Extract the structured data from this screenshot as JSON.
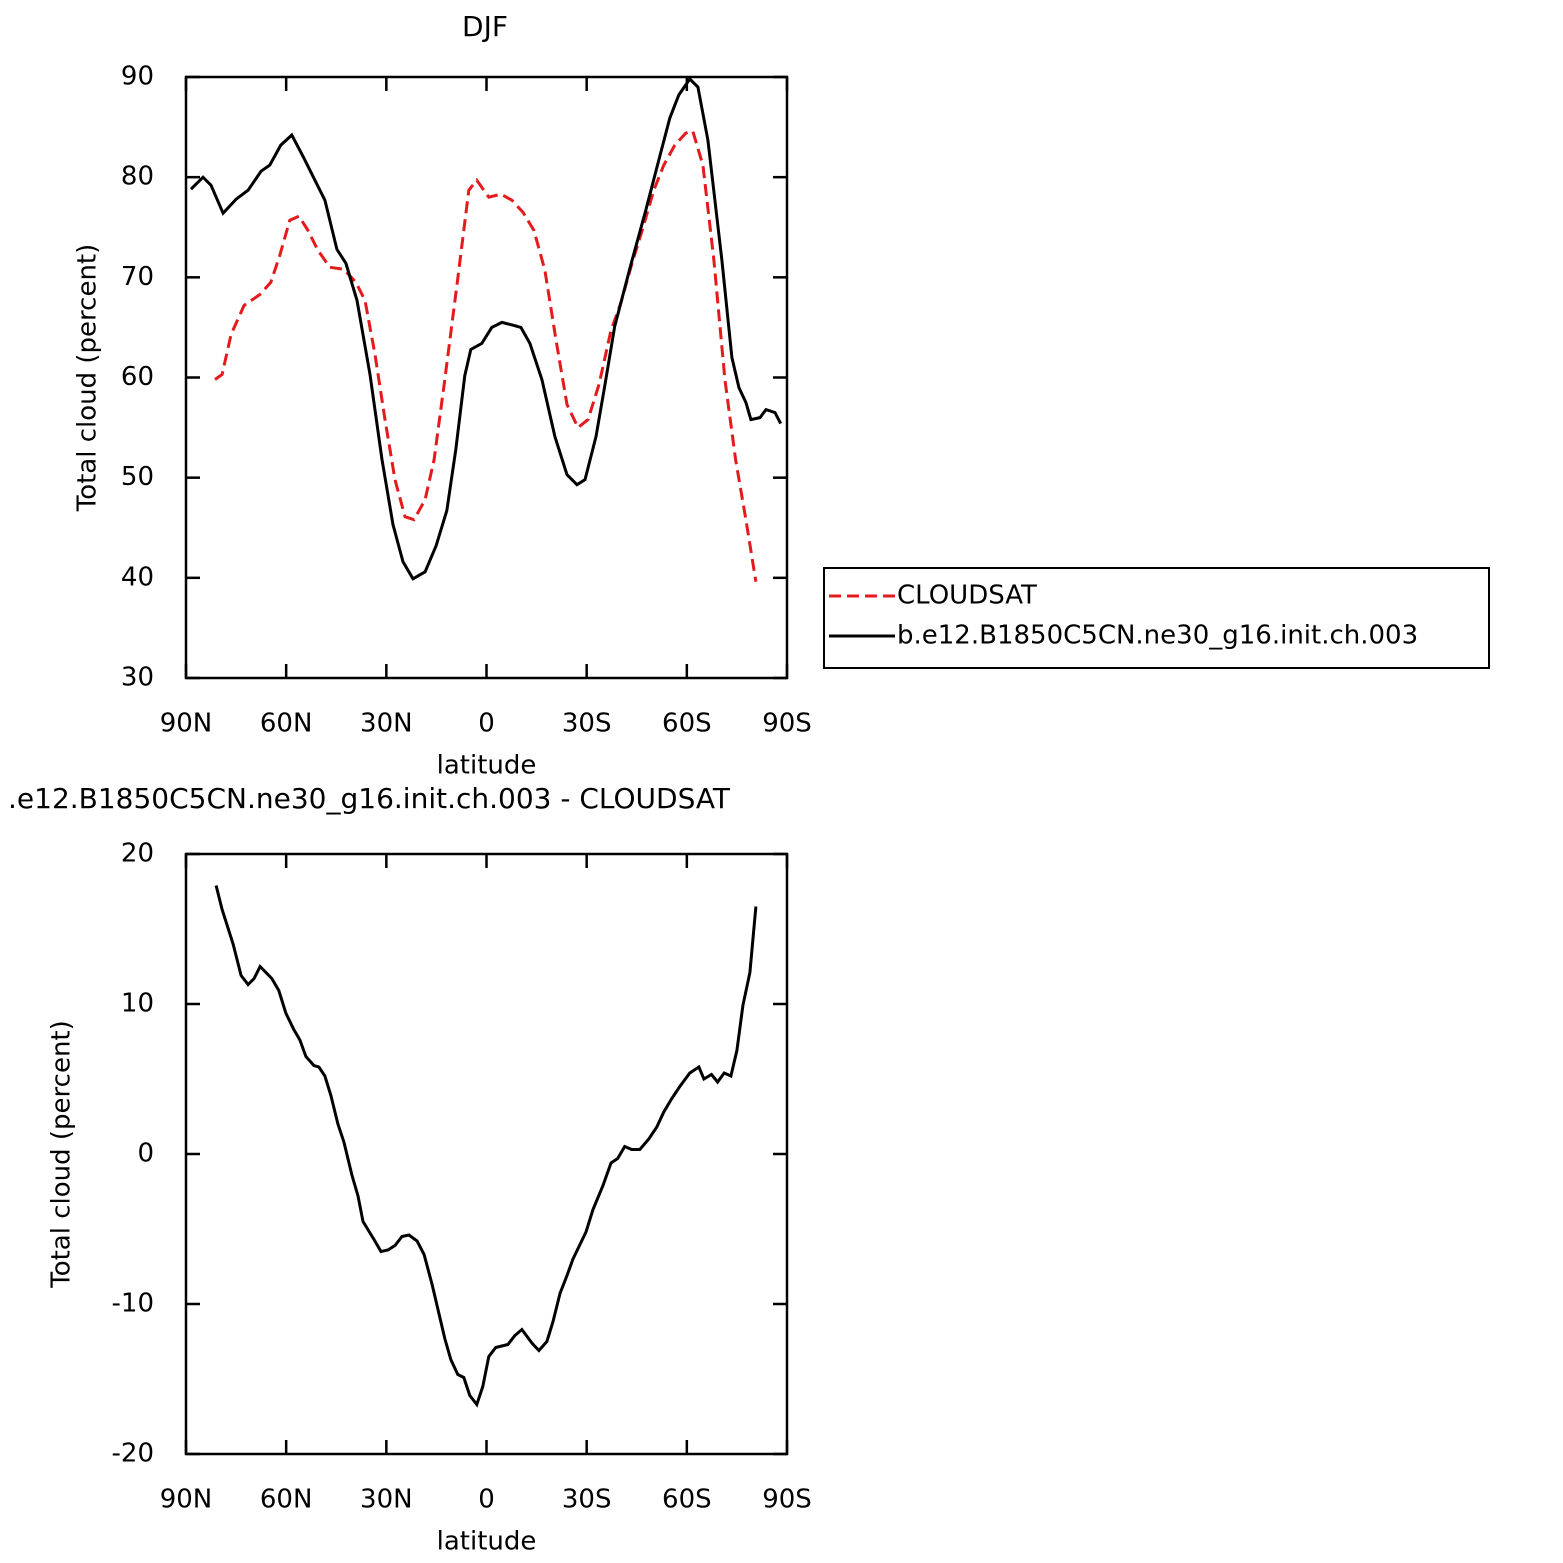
{
  "chart_data": [
    {
      "type": "line",
      "title": "DJF",
      "xlabel": "latitude",
      "ylabel": "Total cloud (percent)",
      "xlim": [
        90,
        -90
      ],
      "xticks": [
        {
          "value": 90,
          "label": "90N"
        },
        {
          "value": 60,
          "label": "60N"
        },
        {
          "value": 30,
          "label": "30N"
        },
        0,
        {
          "value": -30,
          "label": "30S"
        },
        {
          "value": -60,
          "label": "60S"
        },
        {
          "value": -90,
          "label": "90S"
        }
      ],
      "ylim": [
        30,
        90
      ],
      "yticks": [
        30,
        40,
        50,
        60,
        70,
        80,
        90
      ],
      "legend": "right",
      "series": [
        {
          "name": "CLOUDSAT",
          "color": "#e41a1c",
          "linestyle": "dashed",
          "x": [
            81.3,
            79.2,
            76.5,
            72.6,
            67.8,
            64.6,
            61.9,
            58.9,
            56.2,
            53.5,
            50.5,
            46.9,
            42.7,
            39.1,
            36.4,
            33.4,
            30.4,
            27.4,
            24.4,
            21.7,
            18.4,
            15.7,
            12.5,
            8.6,
            5.3,
            2.9,
            -0.7,
            -4.3,
            -7.6,
            -10.9,
            -14.2,
            -17.5,
            -20.8,
            -24.1,
            -27.4,
            -30.4,
            -33.7,
            -37.3,
            -40.2,
            -43.5,
            -46.8,
            -50.1,
            -53.1,
            -56.4,
            -59.7,
            -61.8,
            -64.8,
            -68.1,
            -71.4,
            -74.6,
            -77.7,
            -80.7
          ],
          "values": [
            59.8,
            60.3,
            64.3,
            67.2,
            68.3,
            69.5,
            72.2,
            75.7,
            76.1,
            74.7,
            72.7,
            71.0,
            70.8,
            69.5,
            67.7,
            62.3,
            55.8,
            49.8,
            46.1,
            45.8,
            47.8,
            51.8,
            59.8,
            69.9,
            78.7,
            79.7,
            78.0,
            78.3,
            77.7,
            76.5,
            74.7,
            70.7,
            63.8,
            57.3,
            55.0,
            55.8,
            59.3,
            64.7,
            67.4,
            71.3,
            74.9,
            78.7,
            81.2,
            83.2,
            84.4,
            84.6,
            81.2,
            71.7,
            59.8,
            51.8,
            45.8,
            39.6
          ]
        },
        {
          "name": "b.e12.B1850C5CN.ne30_g16.init.ch.003",
          "color": "#000000",
          "linestyle": "solid",
          "x": [
            88.5,
            84.9,
            82.5,
            78.9,
            75.0,
            71.4,
            67.5,
            64.9,
            61.6,
            58.3,
            54.7,
            51.4,
            48.4,
            44.8,
            42.1,
            38.8,
            34.9,
            31.3,
            28.0,
            25.0,
            22.0,
            18.4,
            15.1,
            11.9,
            9.2,
            6.5,
            4.7,
            1.4,
            -1.6,
            -4.6,
            -8.2,
            -10.3,
            -13.0,
            -16.6,
            -20.5,
            -24.1,
            -27.1,
            -29.5,
            -32.8,
            -35.5,
            -38.4,
            -43.2,
            -47.7,
            -51.6,
            -54.9,
            -57.6,
            -60.9,
            -63.3,
            -66.3,
            -70.5,
            -73.5,
            -75.6,
            -77.7,
            -79.2,
            -81.9,
            -83.7,
            -86.4,
            -88.1
          ],
          "values": [
            78.8,
            80.0,
            79.2,
            76.4,
            77.8,
            78.7,
            80.6,
            81.2,
            83.2,
            84.2,
            81.9,
            79.7,
            77.7,
            72.8,
            71.4,
            67.7,
            60.3,
            51.8,
            45.3,
            41.6,
            39.9,
            40.6,
            43.2,
            46.7,
            52.8,
            60.2,
            62.8,
            63.4,
            65.0,
            65.5,
            65.2,
            65.0,
            63.4,
            59.8,
            54.1,
            50.3,
            49.3,
            49.8,
            54.1,
            59.3,
            65.1,
            71.2,
            76.7,
            81.7,
            85.9,
            88.2,
            89.8,
            89.0,
            83.7,
            71.7,
            62.0,
            59.0,
            57.5,
            55.8,
            56.0,
            56.8,
            56.5,
            55.4
          ]
        }
      ]
    },
    {
      "type": "line",
      "title": ".e12.B1850C5CN.ne30_g16.init.ch.003 - CLOUDSAT",
      "xlabel": "latitude",
      "ylabel": "Total cloud (percent)",
      "xlim": [
        90,
        -90
      ],
      "xticks": [
        {
          "value": 90,
          "label": "90N"
        },
        {
          "value": 60,
          "label": "60N"
        },
        {
          "value": 30,
          "label": "30N"
        },
        0,
        {
          "value": -30,
          "label": "30S"
        },
        {
          "value": -60,
          "label": "60S"
        },
        {
          "value": -90,
          "label": "90S"
        }
      ],
      "ylim": [
        -20,
        20
      ],
      "yticks": [
        -20,
        -10,
        0,
        10,
        20
      ],
      "series": [
        {
          "color": "#000000",
          "linestyle": "solid",
          "x": [
            81.0,
            79.2,
            75.9,
            73.5,
            71.4,
            69.6,
            67.8,
            64.3,
            62.2,
            60.1,
            57.7,
            55.9,
            54.1,
            51.7,
            50.2,
            48.4,
            46.6,
            44.5,
            42.7,
            40.3,
            38.5,
            37.0,
            33.7,
            31.6,
            29.5,
            27.4,
            25.3,
            23.2,
            20.8,
            18.7,
            16.3,
            12.5,
            10.7,
            8.6,
            6.8,
            5.0,
            2.9,
            1.1,
            -0.7,
            -2.8,
            -6.4,
            -8.5,
            -10.6,
            -13.6,
            -15.7,
            -18.1,
            -19.9,
            -22.0,
            -24.1,
            -25.9,
            -29.8,
            -31.9,
            -34.9,
            -37.3,
            -39.3,
            -41.4,
            -43.5,
            -45.9,
            -48.6,
            -51.0,
            -53.1,
            -55.5,
            -57.9,
            -60.9,
            -63.6,
            -65.1,
            -67.4,
            -69.2,
            -71.2,
            -73.2,
            -75.0,
            -76.8,
            -78.9,
            -80.7
          ],
          "values": [
            17.9,
            16.3,
            14.0,
            11.9,
            11.3,
            11.7,
            12.5,
            11.7,
            10.9,
            9.4,
            8.3,
            7.6,
            6.5,
            5.9,
            5.8,
            5.2,
            3.9,
            2.0,
            0.8,
            -1.4,
            -2.8,
            -4.5,
            -5.7,
            -6.5,
            -6.4,
            -6.1,
            -5.5,
            -5.4,
            -5.8,
            -6.7,
            -8.7,
            -12.3,
            -13.7,
            -14.7,
            -14.9,
            -16.1,
            -16.7,
            -15.5,
            -13.5,
            -12.9,
            -12.7,
            -12.1,
            -11.7,
            -12.6,
            -13.1,
            -12.5,
            -11.2,
            -9.3,
            -8.1,
            -7.0,
            -5.2,
            -3.7,
            -2.1,
            -0.6,
            -0.3,
            0.5,
            0.3,
            0.3,
            1.0,
            1.8,
            2.8,
            3.7,
            4.5,
            5.4,
            5.8,
            5.0,
            5.3,
            4.8,
            5.4,
            5.2,
            6.9,
            9.9,
            12.1,
            16.5
          ]
        }
      ]
    }
  ]
}
